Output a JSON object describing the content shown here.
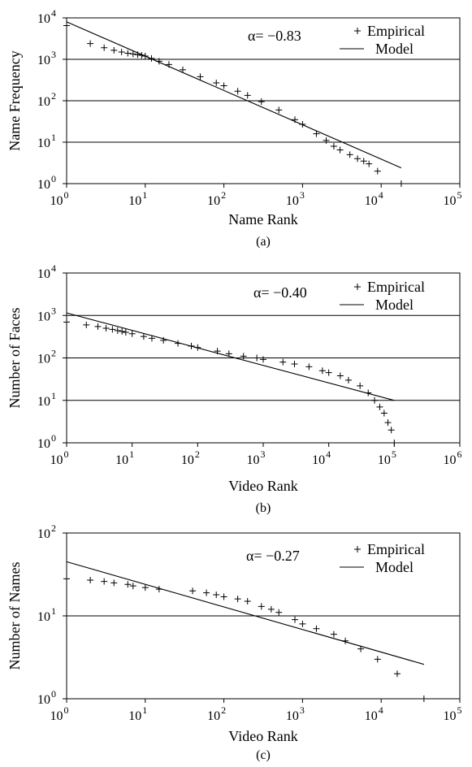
{
  "chart_data": [
    {
      "panel": "(a)",
      "type": "scatter",
      "xlabel": "Name Rank",
      "ylabel": "Name Frequency",
      "xscale": "log",
      "yscale": "log",
      "xlim": [
        1,
        100000
      ],
      "ylim": [
        1,
        10000
      ],
      "grid": true,
      "legend": [
        "Empirical",
        "Model"
      ],
      "legend_position": "top-right",
      "annotation": "α= −0.83",
      "series": [
        {
          "name": "Empirical",
          "style": "markers",
          "points": [
            [
              1,
              6500
            ],
            [
              2,
              2400
            ],
            [
              3,
              1900
            ],
            [
              4,
              1650
            ],
            [
              5,
              1500
            ],
            [
              6,
              1400
            ],
            [
              7,
              1350
            ],
            [
              8,
              1300
            ],
            [
              9,
              1250
            ],
            [
              10,
              1200
            ],
            [
              12,
              1050
            ],
            [
              15,
              900
            ],
            [
              20,
              750
            ],
            [
              30,
              560
            ],
            [
              50,
              380
            ],
            [
              80,
              270
            ],
            [
              100,
              230
            ],
            [
              150,
              170
            ],
            [
              200,
              135
            ],
            [
              300,
              95
            ],
            [
              500,
              60
            ],
            [
              800,
              35
            ],
            [
              1000,
              27
            ],
            [
              1500,
              16
            ],
            [
              2000,
              11
            ],
            [
              2500,
              8
            ],
            [
              3000,
              6.5
            ],
            [
              4000,
              5
            ],
            [
              5000,
              4
            ],
            [
              6000,
              3.5
            ],
            [
              7000,
              3
            ],
            [
              9000,
              2
            ],
            [
              18000,
              1
            ]
          ]
        },
        {
          "name": "Model",
          "style": "line",
          "alpha": -0.83,
          "points": [
            [
              1,
              8000
            ],
            [
              18000,
              2.4
            ]
          ]
        }
      ],
      "caption": "(a)"
    },
    {
      "panel": "(b)",
      "type": "scatter",
      "xlabel": "Video Rank",
      "ylabel": "Number of Faces",
      "xscale": "log",
      "yscale": "log",
      "xlim": [
        1,
        1000000
      ],
      "ylim": [
        1,
        10000
      ],
      "grid": true,
      "legend": [
        "Empirical",
        "Model"
      ],
      "legend_position": "top-right",
      "annotation": "α= −0.40",
      "series": [
        {
          "name": "Empirical",
          "style": "markers",
          "points": [
            [
              1,
              700
            ],
            [
              2,
              600
            ],
            [
              3,
              550
            ],
            [
              4,
              500
            ],
            [
              5,
              470
            ],
            [
              6,
              440
            ],
            [
              7,
              420
            ],
            [
              8,
              400
            ],
            [
              10,
              370
            ],
            [
              15,
              320
            ],
            [
              20,
              290
            ],
            [
              30,
              260
            ],
            [
              50,
              220
            ],
            [
              80,
              190
            ],
            [
              100,
              175
            ],
            [
              200,
              145
            ],
            [
              300,
              125
            ],
            [
              500,
              110
            ],
            [
              800,
              100
            ],
            [
              1000,
              92
            ],
            [
              2000,
              80
            ],
            [
              3000,
              72
            ],
            [
              5000,
              62
            ],
            [
              8000,
              50
            ],
            [
              10000,
              45
            ],
            [
              15000,
              38
            ],
            [
              20000,
              30
            ],
            [
              30000,
              22
            ],
            [
              40000,
              15
            ],
            [
              50000,
              10
            ],
            [
              60000,
              7
            ],
            [
              70000,
              5
            ],
            [
              80000,
              3
            ],
            [
              90000,
              2
            ],
            [
              100000,
              1
            ]
          ]
        },
        {
          "name": "Model",
          "style": "line",
          "alpha": -0.4,
          "points": [
            [
              1,
              1150
            ],
            [
              100000,
              10
            ]
          ]
        }
      ],
      "caption": "(b)"
    },
    {
      "panel": "(c)",
      "type": "scatter",
      "xlabel": "Video Rank",
      "ylabel": "Number of Names",
      "xscale": "log",
      "yscale": "log",
      "xlim": [
        1,
        100000
      ],
      "ylim": [
        1,
        100
      ],
      "grid": true,
      "legend": [
        "Empirical",
        "Model"
      ],
      "legend_position": "top-right",
      "annotation": "α= −0.27",
      "series": [
        {
          "name": "Empirical",
          "style": "markers",
          "points": [
            [
              1,
              28
            ],
            [
              2,
              27
            ],
            [
              3,
              26
            ],
            [
              4,
              25
            ],
            [
              6,
              24
            ],
            [
              7,
              23
            ],
            [
              10,
              22
            ],
            [
              15,
              21
            ],
            [
              40,
              20
            ],
            [
              60,
              19
            ],
            [
              80,
              18
            ],
            [
              100,
              17
            ],
            [
              150,
              16
            ],
            [
              200,
              15
            ],
            [
              300,
              13
            ],
            [
              400,
              12
            ],
            [
              500,
              11
            ],
            [
              800,
              9
            ],
            [
              1000,
              8
            ],
            [
              1500,
              7
            ],
            [
              2500,
              6
            ],
            [
              3500,
              5
            ],
            [
              5500,
              4
            ],
            [
              9000,
              3
            ],
            [
              16000,
              2
            ],
            [
              35000,
              1
            ]
          ]
        },
        {
          "name": "Model",
          "style": "line",
          "alpha": -0.27,
          "points": [
            [
              1,
              45
            ],
            [
              35000,
              2.6
            ]
          ]
        }
      ],
      "caption": "(c)"
    }
  ]
}
